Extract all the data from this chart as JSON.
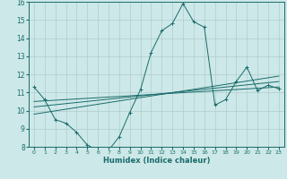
{
  "title": "",
  "xlabel": "Humidex (Indice chaleur)",
  "ylabel": "",
  "bg_color": "#cde8e8",
  "grid_color": "#b0cccc",
  "line_color": "#1a6b6b",
  "xlim": [
    -0.5,
    23.5
  ],
  "ylim": [
    8,
    16
  ],
  "yticks": [
    8,
    9,
    10,
    11,
    12,
    13,
    14,
    15,
    16
  ],
  "xticks": [
    0,
    1,
    2,
    3,
    4,
    5,
    6,
    7,
    8,
    9,
    10,
    11,
    12,
    13,
    14,
    15,
    16,
    17,
    18,
    19,
    20,
    21,
    22,
    23
  ],
  "main_line": {
    "x": [
      0,
      1,
      2,
      3,
      4,
      5,
      6,
      7,
      8,
      9,
      10,
      11,
      12,
      13,
      14,
      15,
      16,
      17,
      18,
      19,
      20,
      21,
      22,
      23
    ],
    "y": [
      11.3,
      10.6,
      9.5,
      9.3,
      8.8,
      8.1,
      7.8,
      7.8,
      8.55,
      9.9,
      11.15,
      13.2,
      14.4,
      14.8,
      15.9,
      14.9,
      14.6,
      10.3,
      10.6,
      11.6,
      12.4,
      11.1,
      11.4,
      11.2
    ]
  },
  "trend_lines": [
    {
      "x": [
        0,
        23
      ],
      "y": [
        10.5,
        11.3
      ]
    },
    {
      "x": [
        0,
        23
      ],
      "y": [
        10.2,
        11.6
      ]
    },
    {
      "x": [
        0,
        23
      ],
      "y": [
        9.8,
        11.9
      ]
    }
  ]
}
